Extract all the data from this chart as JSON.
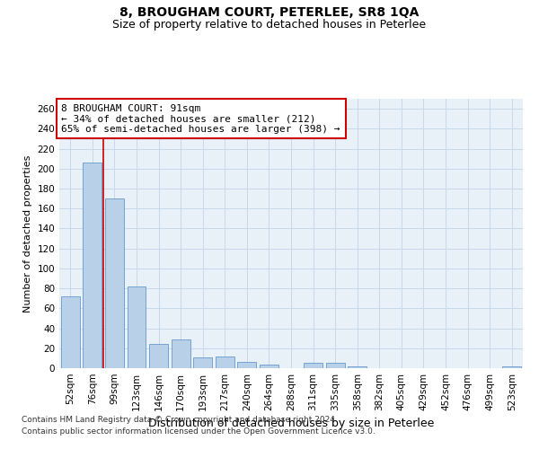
{
  "title": "8, BROUGHAM COURT, PETERLEE, SR8 1QA",
  "subtitle": "Size of property relative to detached houses in Peterlee",
  "xlabel": "Distribution of detached houses by size in Peterlee",
  "ylabel": "Number of detached properties",
  "categories": [
    "52sqm",
    "76sqm",
    "99sqm",
    "123sqm",
    "146sqm",
    "170sqm",
    "193sqm",
    "217sqm",
    "240sqm",
    "264sqm",
    "288sqm",
    "311sqm",
    "335sqm",
    "358sqm",
    "382sqm",
    "405sqm",
    "429sqm",
    "452sqm",
    "476sqm",
    "499sqm",
    "523sqm"
  ],
  "values": [
    72,
    206,
    170,
    82,
    24,
    29,
    11,
    12,
    6,
    4,
    0,
    5,
    5,
    2,
    0,
    0,
    0,
    0,
    0,
    0,
    2
  ],
  "bar_color": "#b8d0e8",
  "bar_edge_color": "#6699cc",
  "red_line_x": 1.5,
  "annotation_title": "8 BROUGHAM COURT: 91sqm",
  "annotation_line1": "← 34% of detached houses are smaller (212)",
  "annotation_line2": "65% of semi-detached houses are larger (398) →",
  "annotation_box_color": "#ffffff",
  "annotation_box_edge": "#cc0000",
  "red_line_color": "#cc0000",
  "ylim": [
    0,
    270
  ],
  "yticks": [
    0,
    20,
    40,
    60,
    80,
    100,
    120,
    140,
    160,
    180,
    200,
    220,
    240,
    260
  ],
  "grid_color": "#c8d8ea",
  "background_color": "#e8f0f8",
  "footnote1": "Contains HM Land Registry data © Crown copyright and database right 2024.",
  "footnote2": "Contains public sector information licensed under the Open Government Licence v3.0.",
  "title_fontsize": 10,
  "subtitle_fontsize": 9,
  "xlabel_fontsize": 9,
  "ylabel_fontsize": 8,
  "tick_fontsize": 7.5,
  "annot_fontsize": 8,
  "footnote_fontsize": 6.5
}
